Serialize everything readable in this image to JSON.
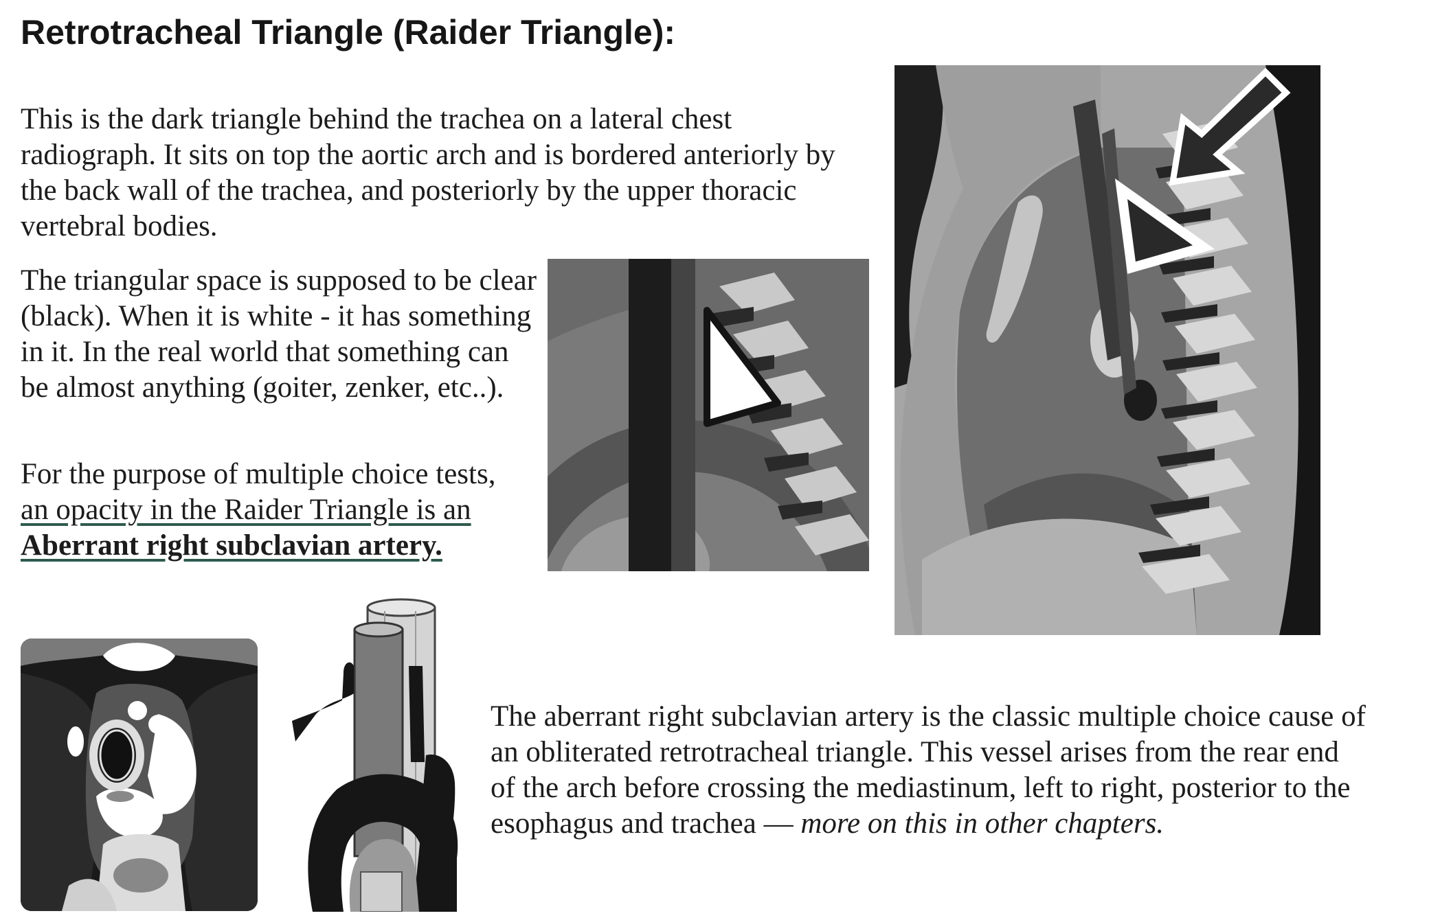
{
  "title": "Retrotracheal Triangle (Raider Triangle):",
  "para1": "This is the dark triangle behind the trachea on a lateral chest radiograph.  It sits on top the aortic arch and is bordered anteriorly by the back wall of the trachea, and posteriorly by the upper thoracic vertebral bodies.",
  "para2": "The triangular space is supposed to be clear (black).  When it is white - it has something in it.  In the real world that something can be almost anything (goiter, zenker, etc..).",
  "para3": {
    "lead": "For the purpose of multiple choice tests, ",
    "underlined": "an opacity in the Raider Triangle is an ",
    "bold": "Aberrant right subclavian artery."
  },
  "para4": {
    "main": "The aberrant right subclavian artery is the classic multiple choice cause of an obliterated retrotracheal triangle.  This vessel arises from the rear end of the arch before crossing the mediastinum, left to right, posterior to the esophagus and trachea — ",
    "italic": "more on this in other chapters."
  },
  "figures": {
    "lateral_cxr": "lateral-chest-diagram-with-arrow",
    "abnormal_zoom": "zoomed-opacified-triangle-diagram",
    "axial_ct": "axial-ct-diagram",
    "arch_3d": "aortic-arch-3d-diagram"
  }
}
